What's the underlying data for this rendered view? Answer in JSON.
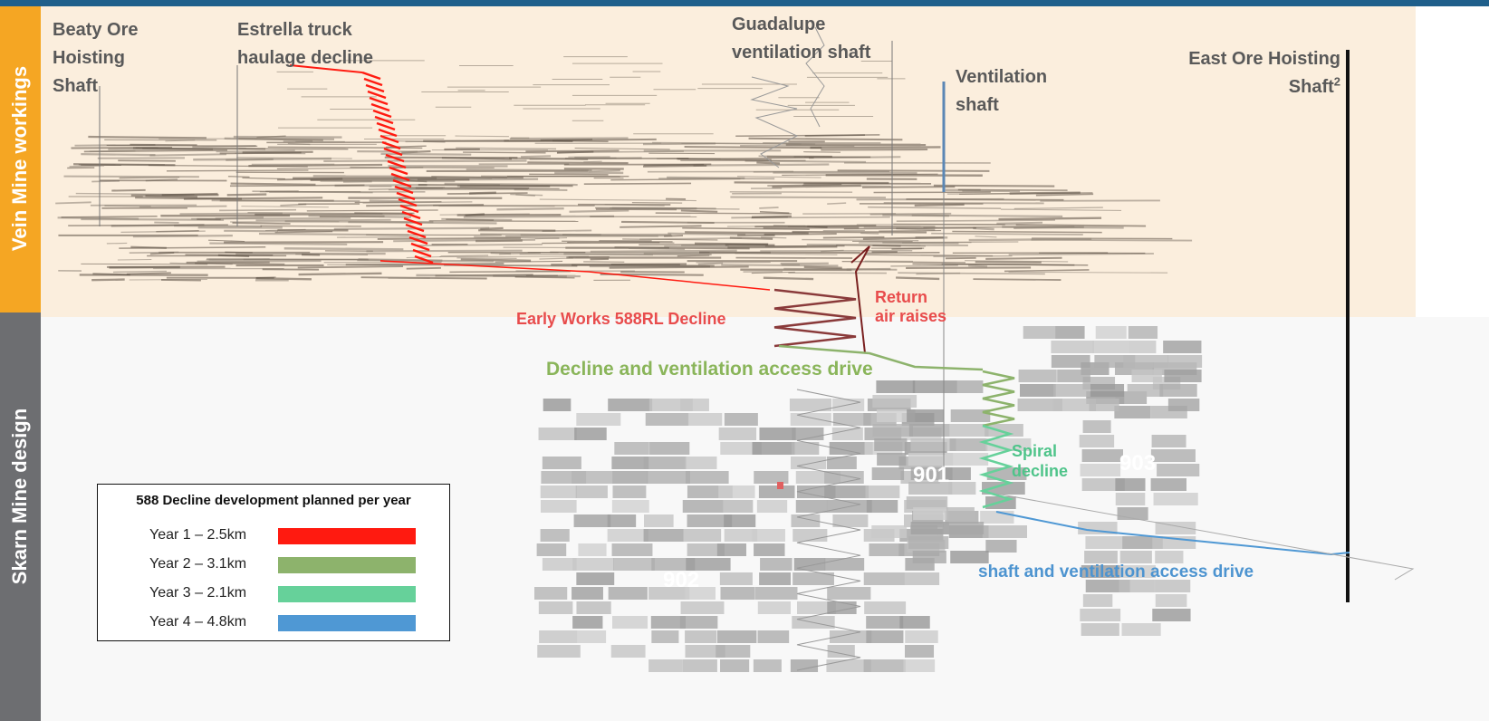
{
  "side_labels": [
    "Vein Mine workings",
    "Skarn Mine design"
  ],
  "shafts": {
    "beaty": "Beaty Ore Hoisting Shaft",
    "estrella": "Estrella truck haulage decline",
    "guadalupe": "Guadalupe ventilation shaft",
    "ventilation": "Ventilation shaft",
    "east_ore": "East Ore Hoisting Shaft",
    "east_ore_note": "2"
  },
  "annotations": {
    "early_works": "Early Works 588RL Decline",
    "return_air": "Return air raises",
    "decline_access": "Decline and ventilation access drive",
    "spiral": "Spiral decline",
    "shaft_access": "shaft and ventilation access drive"
  },
  "zones": [
    "901",
    "902",
    "903"
  ],
  "legend": {
    "title": "588 Decline development planned per year",
    "items": [
      {
        "label": "Year 1 – 2.5km",
        "color": "#ff1a10"
      },
      {
        "label": "Year 2 – 3.1km",
        "color": "#8db36c"
      },
      {
        "label": "Year 3 – 2.1km",
        "color": "#66d19a"
      },
      {
        "label": "Year 4 – 4.8km",
        "color": "#4f98d4"
      }
    ]
  }
}
